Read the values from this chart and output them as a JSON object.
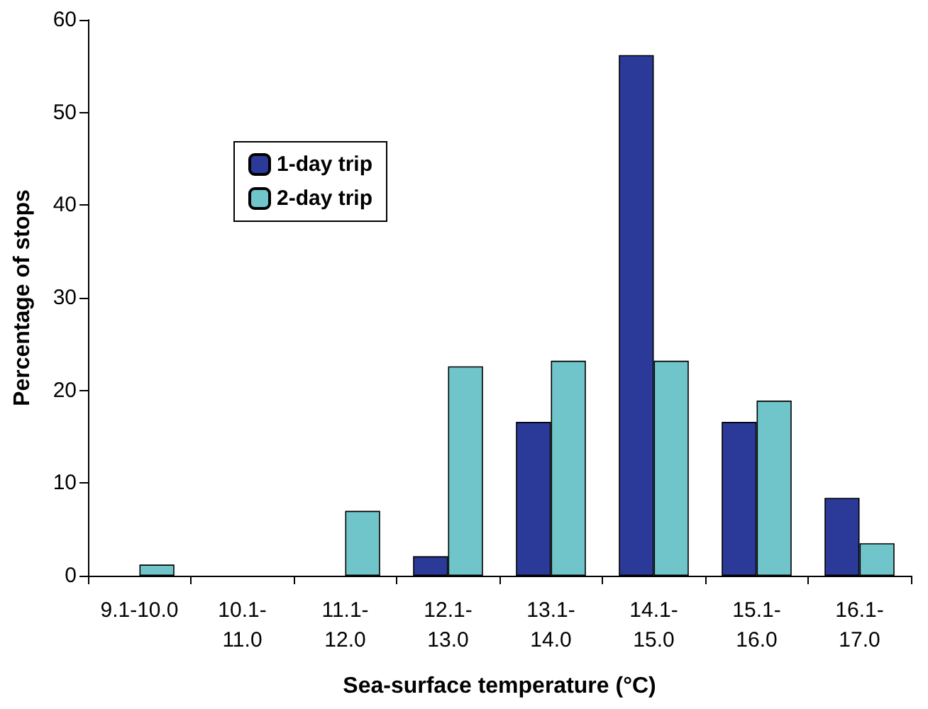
{
  "chart_data": {
    "type": "bar",
    "xlabel": "Sea-surface temperature (°C)",
    "ylabel": "Percentage of stops",
    "categories": [
      "9.1-10.0",
      "10.1-11.0",
      "11.1-12.0",
      "12.1-13.0",
      "13.1-14.0",
      "14.1-15.0",
      "15.1-16.0",
      "16.1-17.0"
    ],
    "series": [
      {
        "name": "1-day trip",
        "color": "#2b3a98",
        "values": [
          0,
          0,
          0,
          2.1,
          16.6,
          56.2,
          16.6,
          8.4
        ]
      },
      {
        "name": "2-day trip",
        "color": "#6fc5c9",
        "values": [
          1.2,
          0,
          7.0,
          22.6,
          23.2,
          23.2,
          18.9,
          3.5
        ]
      }
    ],
    "ylim": [
      0,
      60
    ],
    "yticks": [
      0,
      10,
      20,
      30,
      40,
      50,
      60
    ],
    "grid": false,
    "legend": "top left"
  }
}
